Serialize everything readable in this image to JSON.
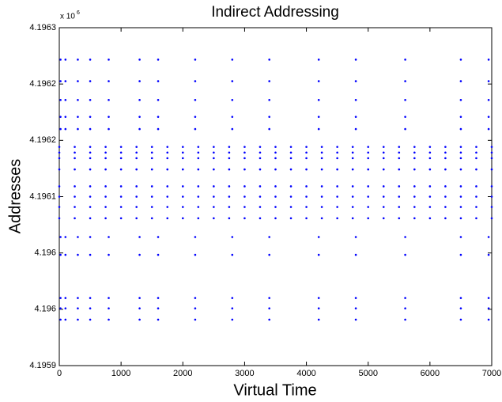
{
  "chart_data": {
    "type": "scatter",
    "title": "Indirect Addressing",
    "x_label": "Virtual Time",
    "y_label": "Addresses",
    "y_multiplier": "x 10",
    "y_multiplier_exponent": "6",
    "color": "#0000ff",
    "xlim": [
      0,
      7000
    ],
    "xticks": [
      0,
      1000,
      2000,
      3000,
      4000,
      5000,
      6000,
      7000
    ],
    "ylim": [
      4.19592,
      4.19628
    ],
    "yticks": [
      {
        "value": 4.19592,
        "label": "4.1959"
      },
      {
        "value": 4.19598,
        "label": "4.196"
      },
      {
        "value": 4.19604,
        "label": "4.196"
      },
      {
        "value": 4.1961,
        "label": "4.1961"
      },
      {
        "value": 4.19616,
        "label": "4.1962"
      },
      {
        "value": 4.19622,
        "label": "4.1962"
      },
      {
        "value": 4.19628,
        "label": "4.1963"
      }
    ],
    "x": [
      0,
      250,
      500,
      750,
      1000,
      1250,
      1500,
      1750,
      2000,
      2250,
      2500,
      2750,
      3000,
      3250,
      3500,
      3750,
      4000,
      4250,
      4500,
      4750,
      5000,
      5250,
      5500,
      5750,
      6000,
      6250,
      6500,
      6750,
      7000,
      0,
      250,
      500,
      750,
      1000,
      1250,
      1500,
      1750,
      2000,
      2250,
      2500,
      2750,
      3000,
      3250,
      3500,
      3750,
      4000,
      4250,
      4500,
      4750,
      5000,
      5250,
      5500,
      5750,
      6000,
      6250,
      6500,
      6750,
      7000,
      0,
      250,
      500,
      750,
      1000,
      1250,
      1500,
      1750,
      2000,
      2250,
      2500,
      2750,
      3000,
      3250,
      3500,
      3750,
      4000,
      4250,
      4500,
      4750,
      5000,
      5250,
      5500,
      5750,
      6000,
      6250,
      6500,
      6750,
      7000,
      0,
      250,
      500,
      750,
      1000,
      1250,
      1500,
      1750,
      2000,
      2250,
      2500,
      2750,
      3000,
      3250,
      3500,
      3750,
      4000,
      4250,
      4500,
      4750,
      5000,
      5250,
      5500,
      5750,
      6000,
      6250,
      6500,
      6750,
      7000,
      0,
      250,
      500,
      750,
      1000,
      1250,
      1500,
      1750,
      2000,
      2250,
      2500,
      2750,
      3000,
      3250,
      3500,
      3750,
      4000,
      4250,
      4500,
      4750,
      5000,
      5250,
      5500,
      5750,
      6000,
      6250,
      6500,
      6750,
      7000,
      0,
      250,
      500,
      750,
      1000,
      1250,
      1500,
      1750,
      2000,
      2250,
      2500,
      2750,
      3000,
      3250,
      3500,
      3750,
      4000,
      4250,
      4500,
      4750,
      5000,
      5250,
      5500,
      5750,
      6000,
      6250,
      6500,
      6750,
      7000,
      0,
      250,
      500,
      750,
      1000,
      1250,
      1500,
      1750,
      2000,
      2250,
      2500,
      2750,
      3000,
      3250,
      3500,
      3750,
      4000,
      4250,
      4500,
      4750,
      5000,
      5250,
      5500,
      5750,
      6000,
      6250,
      6500,
      6750,
      7000,
      0,
      250,
      500,
      750,
      1000,
      1250,
      1500,
      1750,
      2000,
      2250,
      2500,
      2750,
      3000,
      3250,
      3500,
      3750,
      4000,
      4250,
      4500,
      4750,
      5000,
      5250,
      5500,
      5750,
      6000,
      6250,
      6500,
      6750,
      7000,
      20,
      100,
      300,
      500,
      800,
      1300,
      1600,
      2200,
      2800,
      3400,
      4200,
      4800,
      5600,
      6500,
      6950,
      20,
      100,
      300,
      500,
      800,
      1300,
      1600,
      2200,
      2800,
      3400,
      4200,
      4800,
      5600,
      6500,
      6950,
      20,
      100,
      300,
      500,
      800,
      1300,
      1600,
      2200,
      2800,
      3400,
      4200,
      4800,
      5600,
      6500,
      6950,
      20,
      100,
      300,
      500,
      800,
      1300,
      1600,
      2200,
      2800,
      3400,
      4200,
      4800,
      5600,
      6500,
      6950,
      20,
      100,
      300,
      500,
      800,
      1300,
      1600,
      2200,
      2800,
      3400,
      4200,
      4800,
      5600,
      6500,
      6950,
      20,
      100,
      300,
      500,
      800,
      1300,
      1600,
      2200,
      2800,
      3400,
      4200,
      4800,
      5600,
      6500,
      6950,
      20,
      100,
      300,
      500,
      800,
      1300,
      1600,
      2200,
      2800,
      3400,
      4200,
      4800,
      5600,
      6500,
      6950,
      20,
      100,
      300,
      500,
      800,
      1300,
      1600,
      2200,
      2800,
      3400,
      4200,
      4800,
      5600,
      6500,
      6950,
      20,
      100,
      300,
      500,
      800,
      1300,
      1600,
      2200,
      2800,
      3400,
      4200,
      4800,
      5600,
      6500,
      6950,
      20,
      100,
      300,
      500,
      800,
      1300,
      1600,
      2200,
      2800,
      3400,
      4200,
      4800,
      5600,
      6500,
      6950
    ],
    "values": [
      4.196153,
      4.196153,
      4.196153,
      4.196153,
      4.196153,
      4.196153,
      4.196153,
      4.196153,
      4.196153,
      4.196153,
      4.196153,
      4.196153,
      4.196153,
      4.196153,
      4.196153,
      4.196153,
      4.196153,
      4.196153,
      4.196153,
      4.196153,
      4.196153,
      4.196153,
      4.196153,
      4.196153,
      4.196153,
      4.196153,
      4.196153,
      4.196153,
      4.196153,
      4.196147,
      4.196147,
      4.196147,
      4.196147,
      4.196147,
      4.196147,
      4.196147,
      4.196147,
      4.196147,
      4.196147,
      4.196147,
      4.196147,
      4.196147,
      4.196147,
      4.196147,
      4.196147,
      4.196147,
      4.196147,
      4.196147,
      4.196147,
      4.196147,
      4.196147,
      4.196147,
      4.196147,
      4.196147,
      4.196147,
      4.196147,
      4.196147,
      4.196147,
      4.196141,
      4.196141,
      4.196141,
      4.196141,
      4.196141,
      4.196141,
      4.196141,
      4.196141,
      4.196141,
      4.196141,
      4.196141,
      4.196141,
      4.196141,
      4.196141,
      4.196141,
      4.196141,
      4.196141,
      4.196141,
      4.196141,
      4.196141,
      4.196141,
      4.196141,
      4.196141,
      4.196141,
      4.196141,
      4.196141,
      4.196141,
      4.196141,
      4.196141,
      4.196129,
      4.196129,
      4.196129,
      4.196129,
      4.196129,
      4.196129,
      4.196129,
      4.196129,
      4.196129,
      4.196129,
      4.196129,
      4.196129,
      4.196129,
      4.196129,
      4.196129,
      4.196129,
      4.196129,
      4.196129,
      4.196129,
      4.196129,
      4.196129,
      4.196129,
      4.196129,
      4.196129,
      4.196129,
      4.196129,
      4.196129,
      4.196129,
      4.196129,
      4.196111,
      4.196111,
      4.196111,
      4.196111,
      4.196111,
      4.196111,
      4.196111,
      4.196111,
      4.196111,
      4.196111,
      4.196111,
      4.196111,
      4.196111,
      4.196111,
      4.196111,
      4.196111,
      4.196111,
      4.196111,
      4.196111,
      4.196111,
      4.196111,
      4.196111,
      4.196111,
      4.196111,
      4.196111,
      4.196111,
      4.196111,
      4.196111,
      4.196111,
      4.1961,
      4.1961,
      4.1961,
      4.1961,
      4.1961,
      4.1961,
      4.1961,
      4.1961,
      4.1961,
      4.1961,
      4.1961,
      4.1961,
      4.1961,
      4.1961,
      4.1961,
      4.1961,
      4.1961,
      4.1961,
      4.1961,
      4.1961,
      4.1961,
      4.1961,
      4.1961,
      4.1961,
      4.1961,
      4.1961,
      4.1961,
      4.1961,
      4.1961,
      4.196089,
      4.196089,
      4.196089,
      4.196089,
      4.196089,
      4.196089,
      4.196089,
      4.196089,
      4.196089,
      4.196089,
      4.196089,
      4.196089,
      4.196089,
      4.196089,
      4.196089,
      4.196089,
      4.196089,
      4.196089,
      4.196089,
      4.196089,
      4.196089,
      4.196089,
      4.196089,
      4.196089,
      4.196089,
      4.196089,
      4.196089,
      4.196089,
      4.196089,
      4.196077,
      4.196077,
      4.196077,
      4.196077,
      4.196077,
      4.196077,
      4.196077,
      4.196077,
      4.196077,
      4.196077,
      4.196077,
      4.196077,
      4.196077,
      4.196077,
      4.196077,
      4.196077,
      4.196077,
      4.196077,
      4.196077,
      4.196077,
      4.196077,
      4.196077,
      4.196077,
      4.196077,
      4.196077,
      4.196077,
      4.196077,
      4.196077,
      4.196077,
      4.196246,
      4.196246,
      4.196246,
      4.196246,
      4.196246,
      4.196246,
      4.196246,
      4.196246,
      4.196246,
      4.196246,
      4.196246,
      4.196246,
      4.196246,
      4.196246,
      4.196246,
      4.196223,
      4.196223,
      4.196223,
      4.196223,
      4.196223,
      4.196223,
      4.196223,
      4.196223,
      4.196223,
      4.196223,
      4.196223,
      4.196223,
      4.196223,
      4.196223,
      4.196223,
      4.196203,
      4.196203,
      4.196203,
      4.196203,
      4.196203,
      4.196203,
      4.196203,
      4.196203,
      4.196203,
      4.196203,
      4.196203,
      4.196203,
      4.196203,
      4.196203,
      4.196203,
      4.196185,
      4.196185,
      4.196185,
      4.196185,
      4.196185,
      4.196185,
      4.196185,
      4.196185,
      4.196185,
      4.196185,
      4.196185,
      4.196185,
      4.196185,
      4.196185,
      4.196185,
      4.196172,
      4.196172,
      4.196172,
      4.196172,
      4.196172,
      4.196172,
      4.196172,
      4.196172,
      4.196172,
      4.196172,
      4.196172,
      4.196172,
      4.196172,
      4.196172,
      4.196172,
      4.196057,
      4.196057,
      4.196057,
      4.196057,
      4.196057,
      4.196057,
      4.196057,
      4.196057,
      4.196057,
      4.196057,
      4.196057,
      4.196057,
      4.196057,
      4.196057,
      4.196057,
      4.196038,
      4.196038,
      4.196038,
      4.196038,
      4.196038,
      4.196038,
      4.196038,
      4.196038,
      4.196038,
      4.196038,
      4.196038,
      4.196038,
      4.196038,
      4.196038,
      4.196038,
      4.195992,
      4.195992,
      4.195992,
      4.195992,
      4.195992,
      4.195992,
      4.195992,
      4.195992,
      4.195992,
      4.195992,
      4.195992,
      4.195992,
      4.195992,
      4.195992,
      4.195992,
      4.195981,
      4.195981,
      4.195981,
      4.195981,
      4.195981,
      4.195981,
      4.195981,
      4.195981,
      4.195981,
      4.195981,
      4.195981,
      4.195981,
      4.195981,
      4.195981,
      4.195981,
      4.195969,
      4.195969,
      4.195969,
      4.195969,
      4.195969,
      4.195969,
      4.195969,
      4.195969,
      4.195969,
      4.195969,
      4.195969,
      4.195969,
      4.195969,
      4.195969,
      4.195969
    ]
  }
}
